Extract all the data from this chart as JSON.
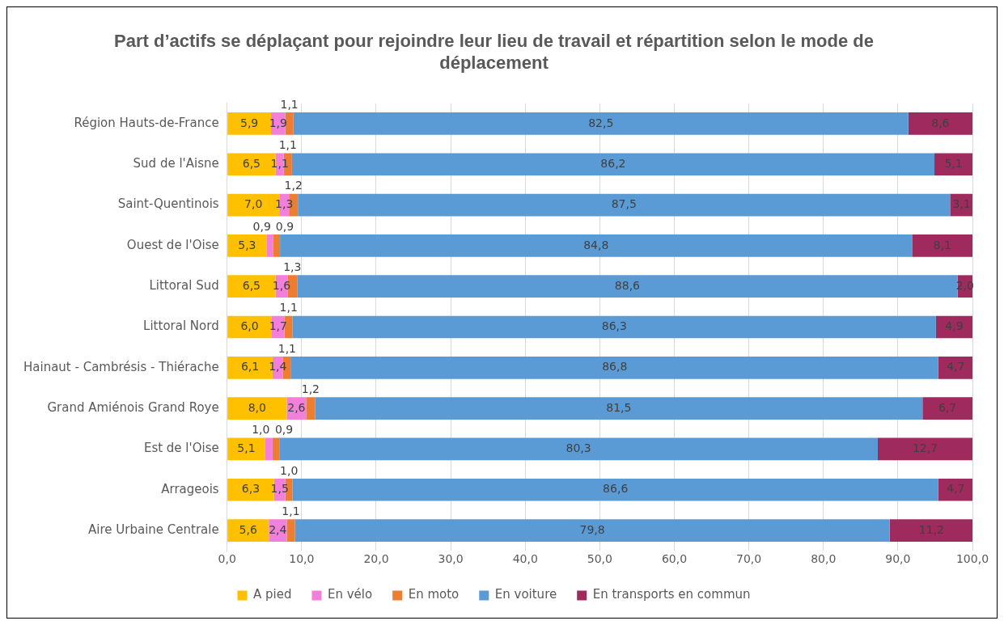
{
  "chart_data": {
    "type": "bar",
    "orientation": "horizontal",
    "stacked": true,
    "title": "Part d’actifs se déplaçant pour rejoindre leur lieu de travail et répartition selon le mode de déplacement",
    "categories": [
      "Région Hauts-de-France",
      "Sud de l'Aisne",
      "Saint-Quentinois",
      "Ouest de l'Oise",
      "Littoral Sud",
      "Littoral Nord",
      "Hainaut - Cambrésis - Thiérache",
      "Grand Amiénois Grand Roye",
      "Est de l'Oise",
      "Arrageois",
      "Aire Urbaine Centrale"
    ],
    "series": [
      {
        "name": "A pied",
        "color": "#ffc000",
        "values": [
          5.9,
          6.5,
          7.0,
          5.3,
          6.5,
          6.0,
          6.1,
          8.0,
          5.1,
          6.3,
          5.6
        ],
        "value_labels": [
          "5,9",
          "6,5",
          "7,0",
          "5,3",
          "6,5",
          "6,0",
          "6,1",
          "8,0",
          "5,1",
          "6,3",
          "5,6"
        ]
      },
      {
        "name": "En vélo",
        "color": "#f27fd9",
        "values": [
          1.9,
          1.1,
          1.3,
          0.9,
          1.6,
          1.7,
          1.4,
          2.6,
          1.0,
          1.5,
          2.4
        ],
        "value_labels": [
          "1,9",
          "1,1",
          "1,3",
          "0,9",
          "1,6",
          "1,7",
          "1,4",
          "2,6",
          "1,0",
          "1,5",
          "2,4"
        ]
      },
      {
        "name": "En moto",
        "color": "#ed7d31",
        "values": [
          1.1,
          1.1,
          1.2,
          0.9,
          1.3,
          1.1,
          1.1,
          1.2,
          0.9,
          1.0,
          1.1
        ],
        "value_labels": [
          "1,1",
          "1,1",
          "1,2",
          "0,9",
          "1,3",
          "1,1",
          "1,1",
          "1,2",
          "0,9",
          "1,0",
          "1,1"
        ]
      },
      {
        "name": "En voiture",
        "color": "#5b9bd5",
        "values": [
          82.5,
          86.2,
          87.5,
          84.8,
          88.6,
          86.3,
          86.8,
          81.5,
          80.3,
          86.6,
          79.8
        ],
        "value_labels": [
          "82,5",
          "86,2",
          "87,5",
          "84,8",
          "88,6",
          "86,3",
          "86,8",
          "81,5",
          "80,3",
          "86,6",
          "79,8"
        ]
      },
      {
        "name": "En transports en commun",
        "color": "#9e2a5e",
        "values": [
          8.6,
          5.1,
          3.1,
          8.1,
          2.0,
          4.9,
          4.7,
          6.7,
          12.7,
          4.7,
          11.2
        ],
        "value_labels": [
          "8,6",
          "5,1",
          "3,1",
          "8,1",
          "2,0",
          "4,9",
          "4,7",
          "6,7",
          "12,7",
          "4,7",
          "11,2"
        ]
      }
    ],
    "xlim": [
      0,
      100
    ],
    "xticks": [
      {
        "value": 0,
        "label": "0,0"
      },
      {
        "value": 10,
        "label": "10,0"
      },
      {
        "value": 20,
        "label": "20,0"
      },
      {
        "value": 30,
        "label": "30,0"
      },
      {
        "value": 40,
        "label": "40,0"
      },
      {
        "value": 50,
        "label": "50,0"
      },
      {
        "value": 60,
        "label": "60,0"
      },
      {
        "value": 70,
        "label": "70,0"
      },
      {
        "value": 80,
        "label": "80,0"
      },
      {
        "value": 90,
        "label": "90,0"
      },
      {
        "value": 100,
        "label": "100,0"
      }
    ],
    "grid": "x",
    "legend": "bottom"
  }
}
